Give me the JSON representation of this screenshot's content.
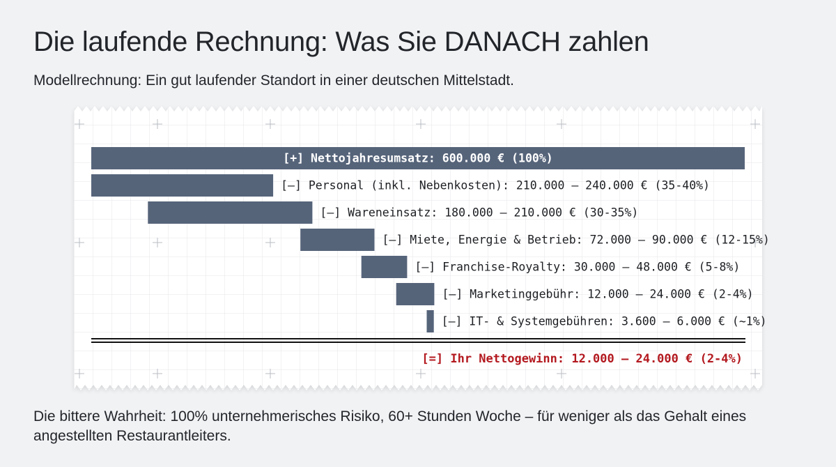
{
  "page": {
    "title": "Die laufende Rechnung: Was Sie DANACH zahlen",
    "subtitle": "Modellrechnung: Ein gut laufender Standort in einer deutschen Mittelstadt.",
    "footer": "Die bittere Wahrheit: 100% unternehmerisches Risiko, 60+ Stunden Woche – für weniger als das Gehalt eines angestellten Restaurantleiters."
  },
  "colors": {
    "bar": "#56647a",
    "text": "#1d1f23",
    "result": "#b3191f",
    "paper": "#ffffff",
    "grid": "#e6e8eb",
    "background": "#f1f2f4"
  },
  "chart_data": {
    "type": "bar",
    "subtype": "waterfall",
    "unit": "€",
    "xlim": [
      0,
      600000
    ],
    "grid": true,
    "bars": [
      {
        "start": 0,
        "end": 600000,
        "label": "[+] Nettojahresumsatz: 600.000 € (100%)",
        "label_inside": true,
        "bold": true
      },
      {
        "start": 0,
        "end": 167000,
        "label": "[–] Personal (inkl. Nebenkosten): 210.000 – 240.000 € (35-40%)"
      },
      {
        "start": 52000,
        "end": 203000,
        "label": "[–] Wareneinsatz: 180.000 – 210.000 € (30-35%)"
      },
      {
        "start": 192000,
        "end": 260000,
        "label": "[–] Miete, Energie & Betrieb: 72.000 – 90.000 € (12-15%)"
      },
      {
        "start": 248000,
        "end": 290000,
        "label": "[–] Franchise-Royalty: 30.000 – 48.000 € (5-8%)"
      },
      {
        "start": 280000,
        "end": 315000,
        "label": "[–] Marketinggebühr: 12.000 – 24.000 € (2-4%)"
      },
      {
        "start": 308000,
        "end": 314500,
        "label": "[–] IT- & Systemgebühren: 3.600 – 6.000 € (~1%)"
      }
    ],
    "result": {
      "label": "[=] Ihr Nettogewinn: 12.000 – 24.000 € (2-4%)"
    }
  }
}
